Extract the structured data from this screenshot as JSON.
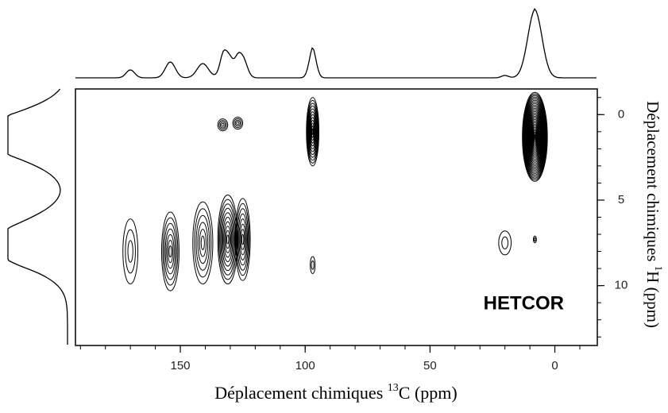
{
  "chart_data": {
    "type": "contour",
    "annotation": "HETCOR",
    "x_label": {
      "prefix": "Déplacement chimiques ",
      "sup": "13",
      "suffix": "C (ppm)"
    },
    "y_label": {
      "prefix": "Déplacement chimiques ",
      "sup": "1",
      "suffix": "H (ppm)"
    },
    "xlim": [
      192,
      -17
    ],
    "xticks": [
      150,
      100,
      50,
      0
    ],
    "ylim": [
      -1.5,
      13.5
    ],
    "yticks": [
      0,
      5,
      10
    ],
    "color": "#000000",
    "points": [
      {
        "x": 8,
        "y": 1.3,
        "dx": 5,
        "dy": 2.6,
        "intensity": 85
      },
      {
        "x": 97,
        "y": 1.0,
        "dx": 2.5,
        "dy": 2.0,
        "intensity": 35
      },
      {
        "x": 133,
        "y": 0.6,
        "dx": 2,
        "dy": 0.35,
        "intensity": 12
      },
      {
        "x": 127,
        "y": 0.5,
        "dx": 2,
        "dy": 0.35,
        "intensity": 12
      },
      {
        "x": 170,
        "y": 8.0,
        "dx": 3,
        "dy": 1.9,
        "intensity": 10
      },
      {
        "x": 154,
        "y": 8.0,
        "dx": 3.5,
        "dy": 2.3,
        "intensity": 20
      },
      {
        "x": 141,
        "y": 7.5,
        "dx": 4,
        "dy": 2.4,
        "intensity": 18
      },
      {
        "x": 131,
        "y": 7.3,
        "dx": 4,
        "dy": 2.6,
        "intensity": 30
      },
      {
        "x": 125,
        "y": 7.3,
        "dx": 3,
        "dy": 2.4,
        "intensity": 25
      },
      {
        "x": 97,
        "y": 8.8,
        "dx": 1,
        "dy": 0.5,
        "intensity": 3
      },
      {
        "x": 20,
        "y": 7.5,
        "dx": 2.5,
        "dy": 0.7,
        "intensity": 3
      },
      {
        "x": 8,
        "y": 7.3,
        "dx": 0.6,
        "dy": 0.2,
        "intensity": 2
      }
    ]
  }
}
